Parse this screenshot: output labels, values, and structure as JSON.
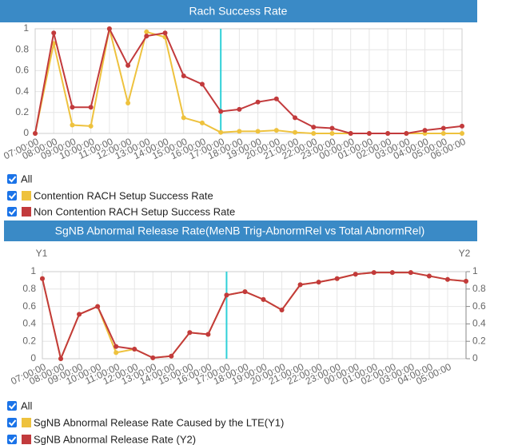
{
  "chart_data": [
    {
      "type": "line",
      "title": "Rach Success Rate",
      "categories": [
        "07:00:00",
        "08:00:00",
        "09:00:00",
        "10:00:00",
        "11:00:00",
        "12:00:00",
        "13:00:00",
        "14:00:00",
        "15:00:00",
        "16:00:00",
        "17:00:00",
        "18:00:00",
        "19:00:00",
        "20:00:00",
        "21:00:00",
        "22:00:00",
        "23:00:00",
        "00:00:00",
        "01:00:00",
        "02:00:00",
        "03:00:00",
        "04:00:00",
        "05:00:00",
        "06:00:00"
      ],
      "ylim": [
        0,
        1
      ],
      "yticks": [
        0,
        0.2,
        0.4,
        0.6,
        0.8,
        1
      ],
      "grid": true,
      "marker_index": 10,
      "legend_all": "All",
      "series": [
        {
          "name": "Contention RACH Setup Success Rate",
          "color": "#eec23e",
          "values": [
            0,
            0.86,
            0.08,
            0.07,
            1.0,
            0.29,
            0.97,
            0.92,
            0.15,
            0.1,
            0.01,
            0.02,
            0.02,
            0.03,
            0.01,
            0,
            0,
            0,
            0,
            0,
            0,
            0,
            0,
            0
          ]
        },
        {
          "name": "Non Contention RACH Setup Success Rate",
          "color": "#c23a3c",
          "values": [
            0,
            0.96,
            0.25,
            0.25,
            1.0,
            0.65,
            0.93,
            0.96,
            0.55,
            0.47,
            0.21,
            0.23,
            0.3,
            0.33,
            0.15,
            0.06,
            0.05,
            0,
            0,
            0,
            0,
            0.03,
            0.05,
            0.07
          ]
        }
      ]
    },
    {
      "type": "line",
      "title": "SgNB Abnormal Release Rate(MeNB Trig-AbnormRel vs Total AbnormRel)",
      "y_label": "Y1",
      "y2_label": "Y2",
      "categories": [
        "07:00:00",
        "08:00:00",
        "09:00:00",
        "10:00:00",
        "11:00:00",
        "12:00:00",
        "13:00:00",
        "14:00:00",
        "15:00:00",
        "16:00:00",
        "17:00:00",
        "18:00:00",
        "19:00:00",
        "20:00:00",
        "21:00:00",
        "22:00:00",
        "23:00:00",
        "00:00:00",
        "01:00:00",
        "02:00:00",
        "03:00:00",
        "04:00:00",
        "05:00:00",
        null
      ],
      "ylim": [
        0,
        1
      ],
      "yticks": [
        0,
        0.2,
        0.4,
        0.6,
        0.8,
        1
      ],
      "y2lim": [
        0,
        1
      ],
      "y2ticks": [
        0,
        0.2,
        0.4,
        0.6,
        0.8,
        1
      ],
      "grid": true,
      "marker_index": 10,
      "legend_all": "All",
      "series": [
        {
          "name": "SgNB Abnormal Release Rate Caused by the LTE(Y1)",
          "color": "#eec23e",
          "values": [
            0.92,
            0,
            0.51,
            0.6,
            0.07,
            0.11,
            0.01,
            0.03,
            0.3,
            0.28,
            0.73,
            0.77,
            0.68,
            0.56,
            0.85,
            0.88,
            0.92,
            0.97,
            0.99,
            0.99,
            0.99,
            0.95,
            0.91,
            0.89
          ]
        },
        {
          "name": "SgNB Abnormal Release Rate (Y2)",
          "color": "#c23a3c",
          "axis": "y2",
          "values": [
            0.92,
            0,
            0.51,
            0.6,
            0.14,
            0.11,
            0.01,
            0.03,
            0.3,
            0.28,
            0.73,
            0.77,
            0.68,
            0.56,
            0.85,
            0.88,
            0.92,
            0.97,
            0.99,
            0.99,
            0.99,
            0.95,
            0.91,
            0.89
          ]
        }
      ]
    }
  ]
}
